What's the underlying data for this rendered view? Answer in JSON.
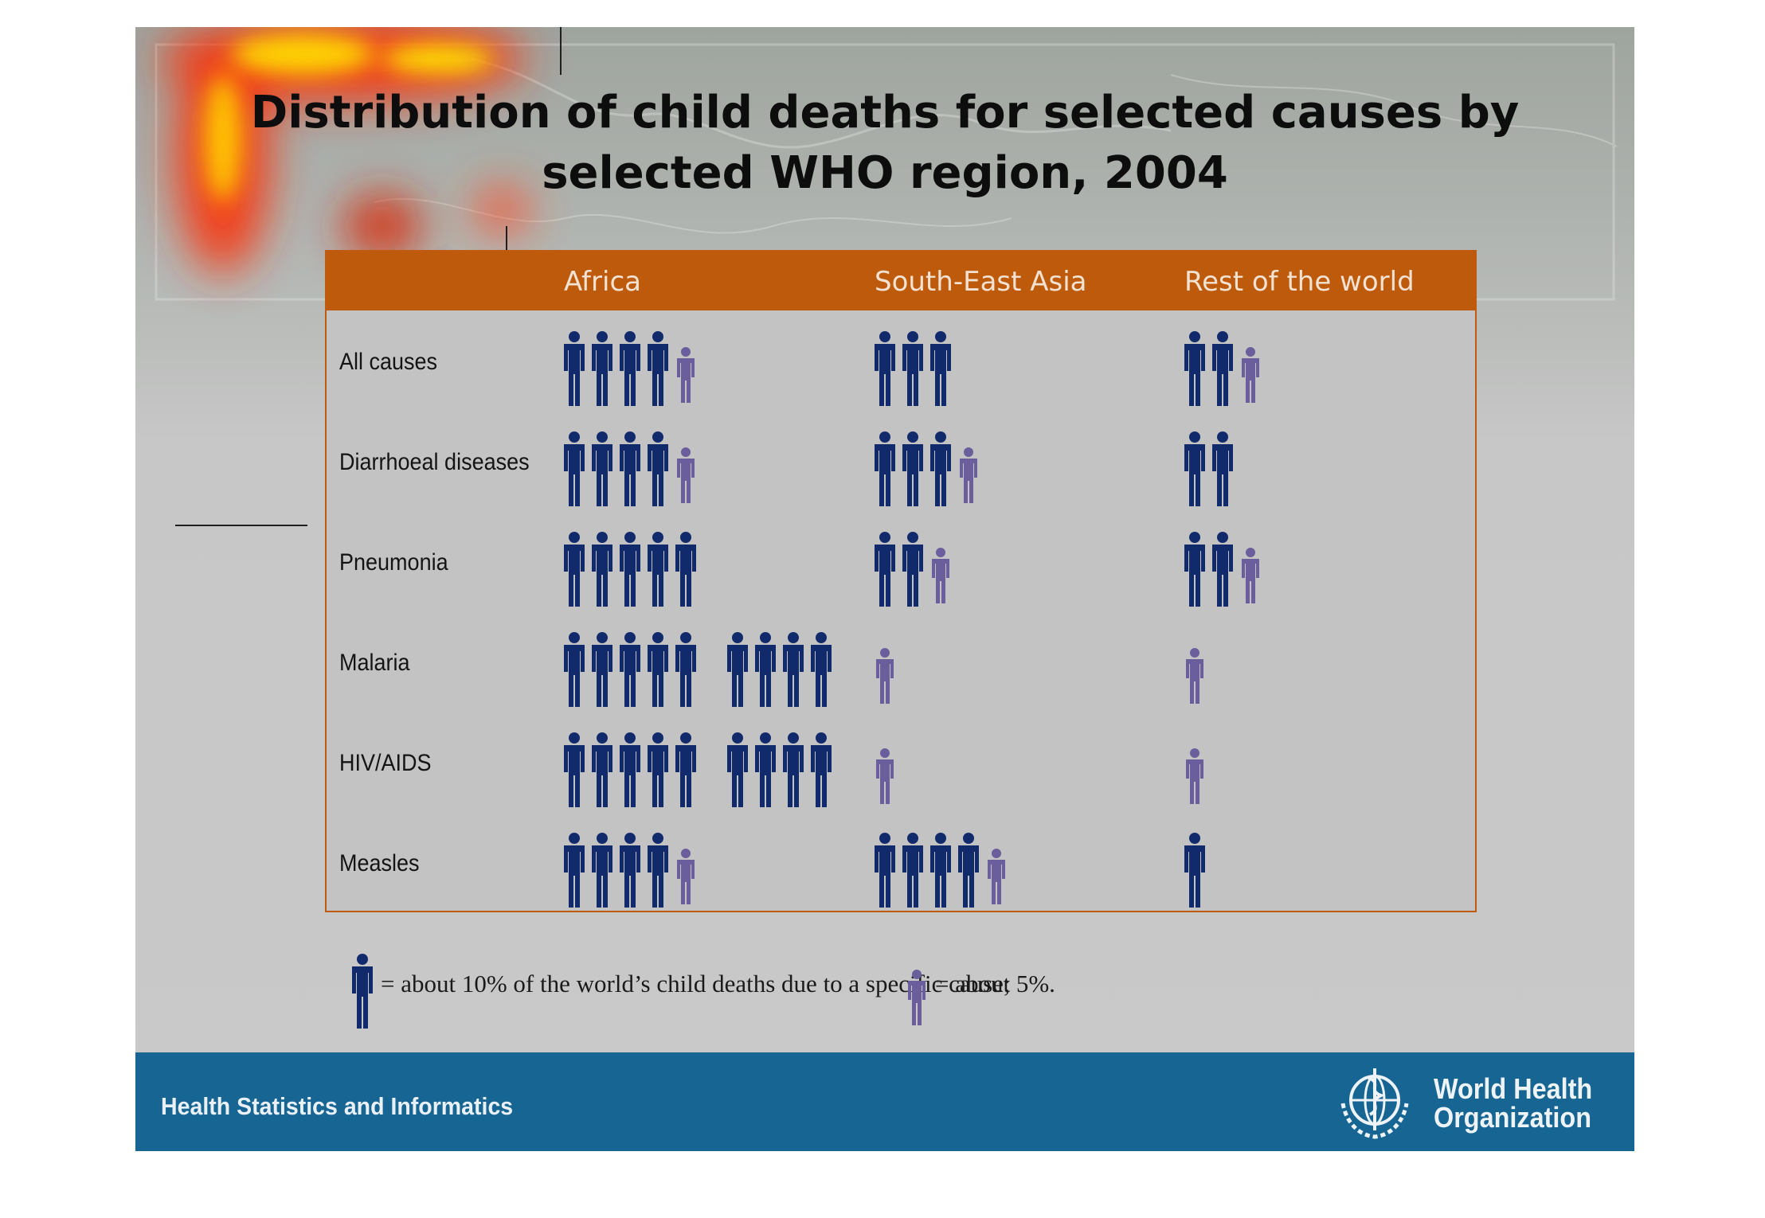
{
  "title_line1": "Distribution of child deaths for selected causes by",
  "title_line2": "selected WHO region, 2004",
  "chart_data": {
    "type": "table",
    "title": "Distribution of child deaths for selected causes by selected WHO region, 2004",
    "columns": [
      "Africa",
      "South-East Asia",
      "Rest of the world"
    ],
    "rows": [
      {
        "label": "All causes",
        "values": [
          45,
          30,
          25
        ]
      },
      {
        "label": "Diarrhoeal diseases",
        "values": [
          45,
          35,
          20
        ]
      },
      {
        "label": "Pneumonia",
        "values": [
          50,
          25,
          25
        ]
      },
      {
        "label": "Malaria",
        "values": [
          90,
          5,
          5
        ]
      },
      {
        "label": "HIV/AIDS",
        "values": [
          90,
          5,
          5
        ]
      },
      {
        "label": "Measles",
        "values": [
          45,
          45,
          10
        ]
      }
    ],
    "unit": "% of the world's child deaths due to a specific cause"
  },
  "legend": {
    "large_text": "= about 10% of the world’s child deaths due to a specific cause;",
    "small_text": "= about 5%."
  },
  "colors": {
    "header": "#bd5a0b",
    "large_icon": "#112a6b",
    "small_icon": "#6a5f9c",
    "footer": "#176593"
  },
  "footer": {
    "text": "Health Statistics and Informatics",
    "org_line1": "World Health",
    "org_line2": "Organization",
    "logo_icon": "who-emblem-icon"
  }
}
